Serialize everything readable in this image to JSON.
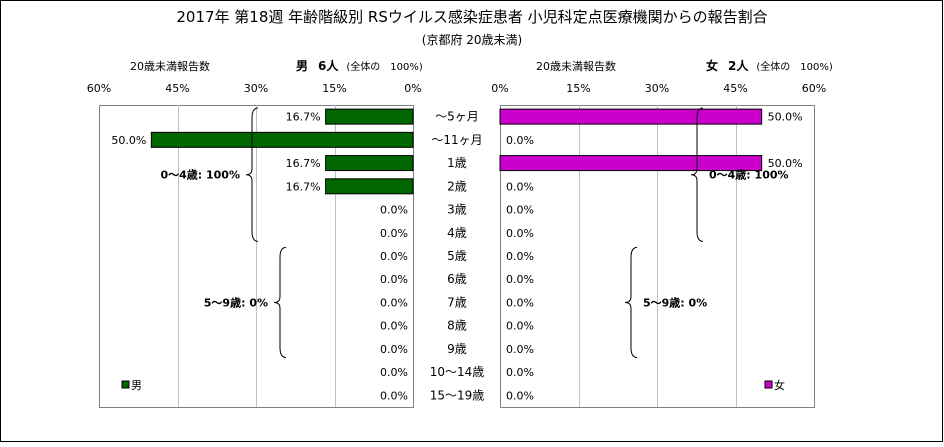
{
  "chart_data": {
    "type": "bar",
    "title": "2017年 第18週 年齢階級別 RSウイルス感染症患者 小児科定点医療機関からの報告割合",
    "subtitle": "(京都府 20歳未満)",
    "categories": [
      "～5ヶ月",
      "～11ヶ月",
      "1歳",
      "2歳",
      "3歳",
      "4歳",
      "5歳",
      "6歳",
      "7歳",
      "8歳",
      "9歳",
      "10～14歳",
      "15～19歳"
    ],
    "value_suffix": "%",
    "tick_values": [
      0,
      15,
      30,
      45,
      60
    ],
    "tick_suffix": "%",
    "panels": [
      {
        "side": "left",
        "series_name": "男",
        "axis_caption": "20歳未満報告数",
        "header_label": "男",
        "header_count": "6人",
        "header_note": "(全体の　100%)",
        "color": "#006600",
        "xlim": [
          0,
          60
        ],
        "values": [
          16.7,
          50.0,
          16.7,
          16.7,
          0.0,
          0.0,
          0.0,
          0.0,
          0.0,
          0.0,
          0.0,
          0.0,
          0.0
        ],
        "value_labels": [
          "16.7%",
          "50.0%",
          "16.7%",
          "16.7%",
          "0.0%",
          "0.0%",
          "0.0%",
          "0.0%",
          "0.0%",
          "0.0%",
          "0.0%",
          "0.0%",
          "0.0%"
        ],
        "groups": [
          {
            "label": "0～4歳: 100%",
            "start": 0,
            "end": 5
          },
          {
            "label": "5～9歳: 0%",
            "start": 6,
            "end": 10
          }
        ]
      },
      {
        "side": "right",
        "series_name": "女",
        "axis_caption": "20歳未満報告数",
        "header_label": "女",
        "header_count": "2人",
        "header_note": "(全体の　100%)",
        "color": "#cc00cc",
        "xlim": [
          0,
          60
        ],
        "values": [
          50.0,
          0.0,
          50.0,
          0.0,
          0.0,
          0.0,
          0.0,
          0.0,
          0.0,
          0.0,
          0.0,
          0.0,
          0.0
        ],
        "value_labels": [
          "50.0%",
          "0.0%",
          "50.0%",
          "0.0%",
          "0.0%",
          "0.0%",
          "0.0%",
          "0.0%",
          "0.0%",
          "0.0%",
          "0.0%",
          "0.0%",
          "0.0%"
        ],
        "groups": [
          {
            "label": "0～4歳: 100%",
            "start": 0,
            "end": 5
          },
          {
            "label": "5～9歳: 0%",
            "start": 6,
            "end": 10
          }
        ]
      }
    ]
  }
}
